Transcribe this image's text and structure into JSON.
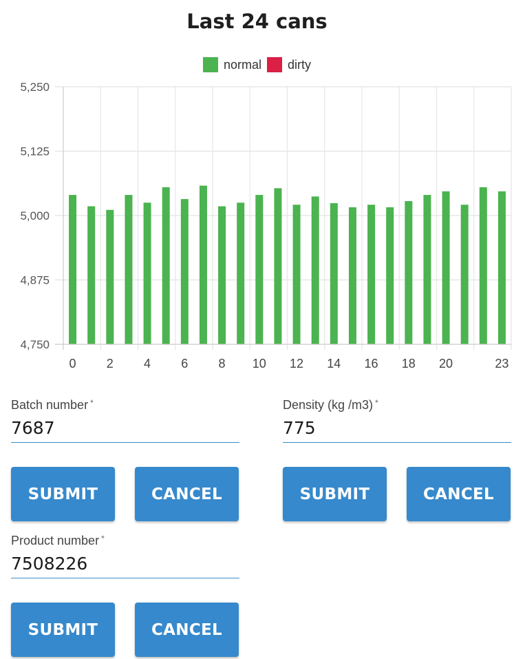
{
  "chart_data": {
    "type": "bar",
    "title": "Last 24 cans",
    "legend": [
      {
        "name": "normal",
        "color": "#4bb34f"
      },
      {
        "name": "dirty",
        "color": "#dc1f45"
      }
    ],
    "x_ticks": [
      "0",
      "2",
      "4",
      "6",
      "8",
      "10",
      "12",
      "14",
      "16",
      "18",
      "20",
      "23"
    ],
    "y_ticks": [
      "5,250",
      "5,125",
      "5,000",
      "4,875",
      "4,750"
    ],
    "ylim": [
      4750,
      5250
    ],
    "categories": [
      0,
      1,
      2,
      3,
      4,
      5,
      6,
      7,
      8,
      9,
      10,
      11,
      12,
      13,
      14,
      15,
      16,
      17,
      18,
      19,
      20,
      21,
      22,
      23
    ],
    "values": [
      5040,
      5018,
      5011,
      5040,
      5025,
      5055,
      5032,
      5058,
      5018,
      5025,
      5040,
      5053,
      5021,
      5037,
      5024,
      5016,
      5021,
      5016,
      5028,
      5040,
      5047,
      5021,
      5055,
      5047
    ],
    "series_name": "normal",
    "grid": true,
    "legend_position": "top-center"
  },
  "form": {
    "batch": {
      "label": "Batch number",
      "value": "7687"
    },
    "density": {
      "label": "Density (kg /m3)",
      "value": "775"
    },
    "product": {
      "label": "Product number",
      "value": "7508226"
    },
    "required_mark": "*",
    "submit_label": "SUBMIT",
    "cancel_label": "CANCEL"
  },
  "colors": {
    "accent": "#3689cc",
    "bar_normal": "#4bb34f",
    "bar_dirty": "#dc1f45"
  }
}
